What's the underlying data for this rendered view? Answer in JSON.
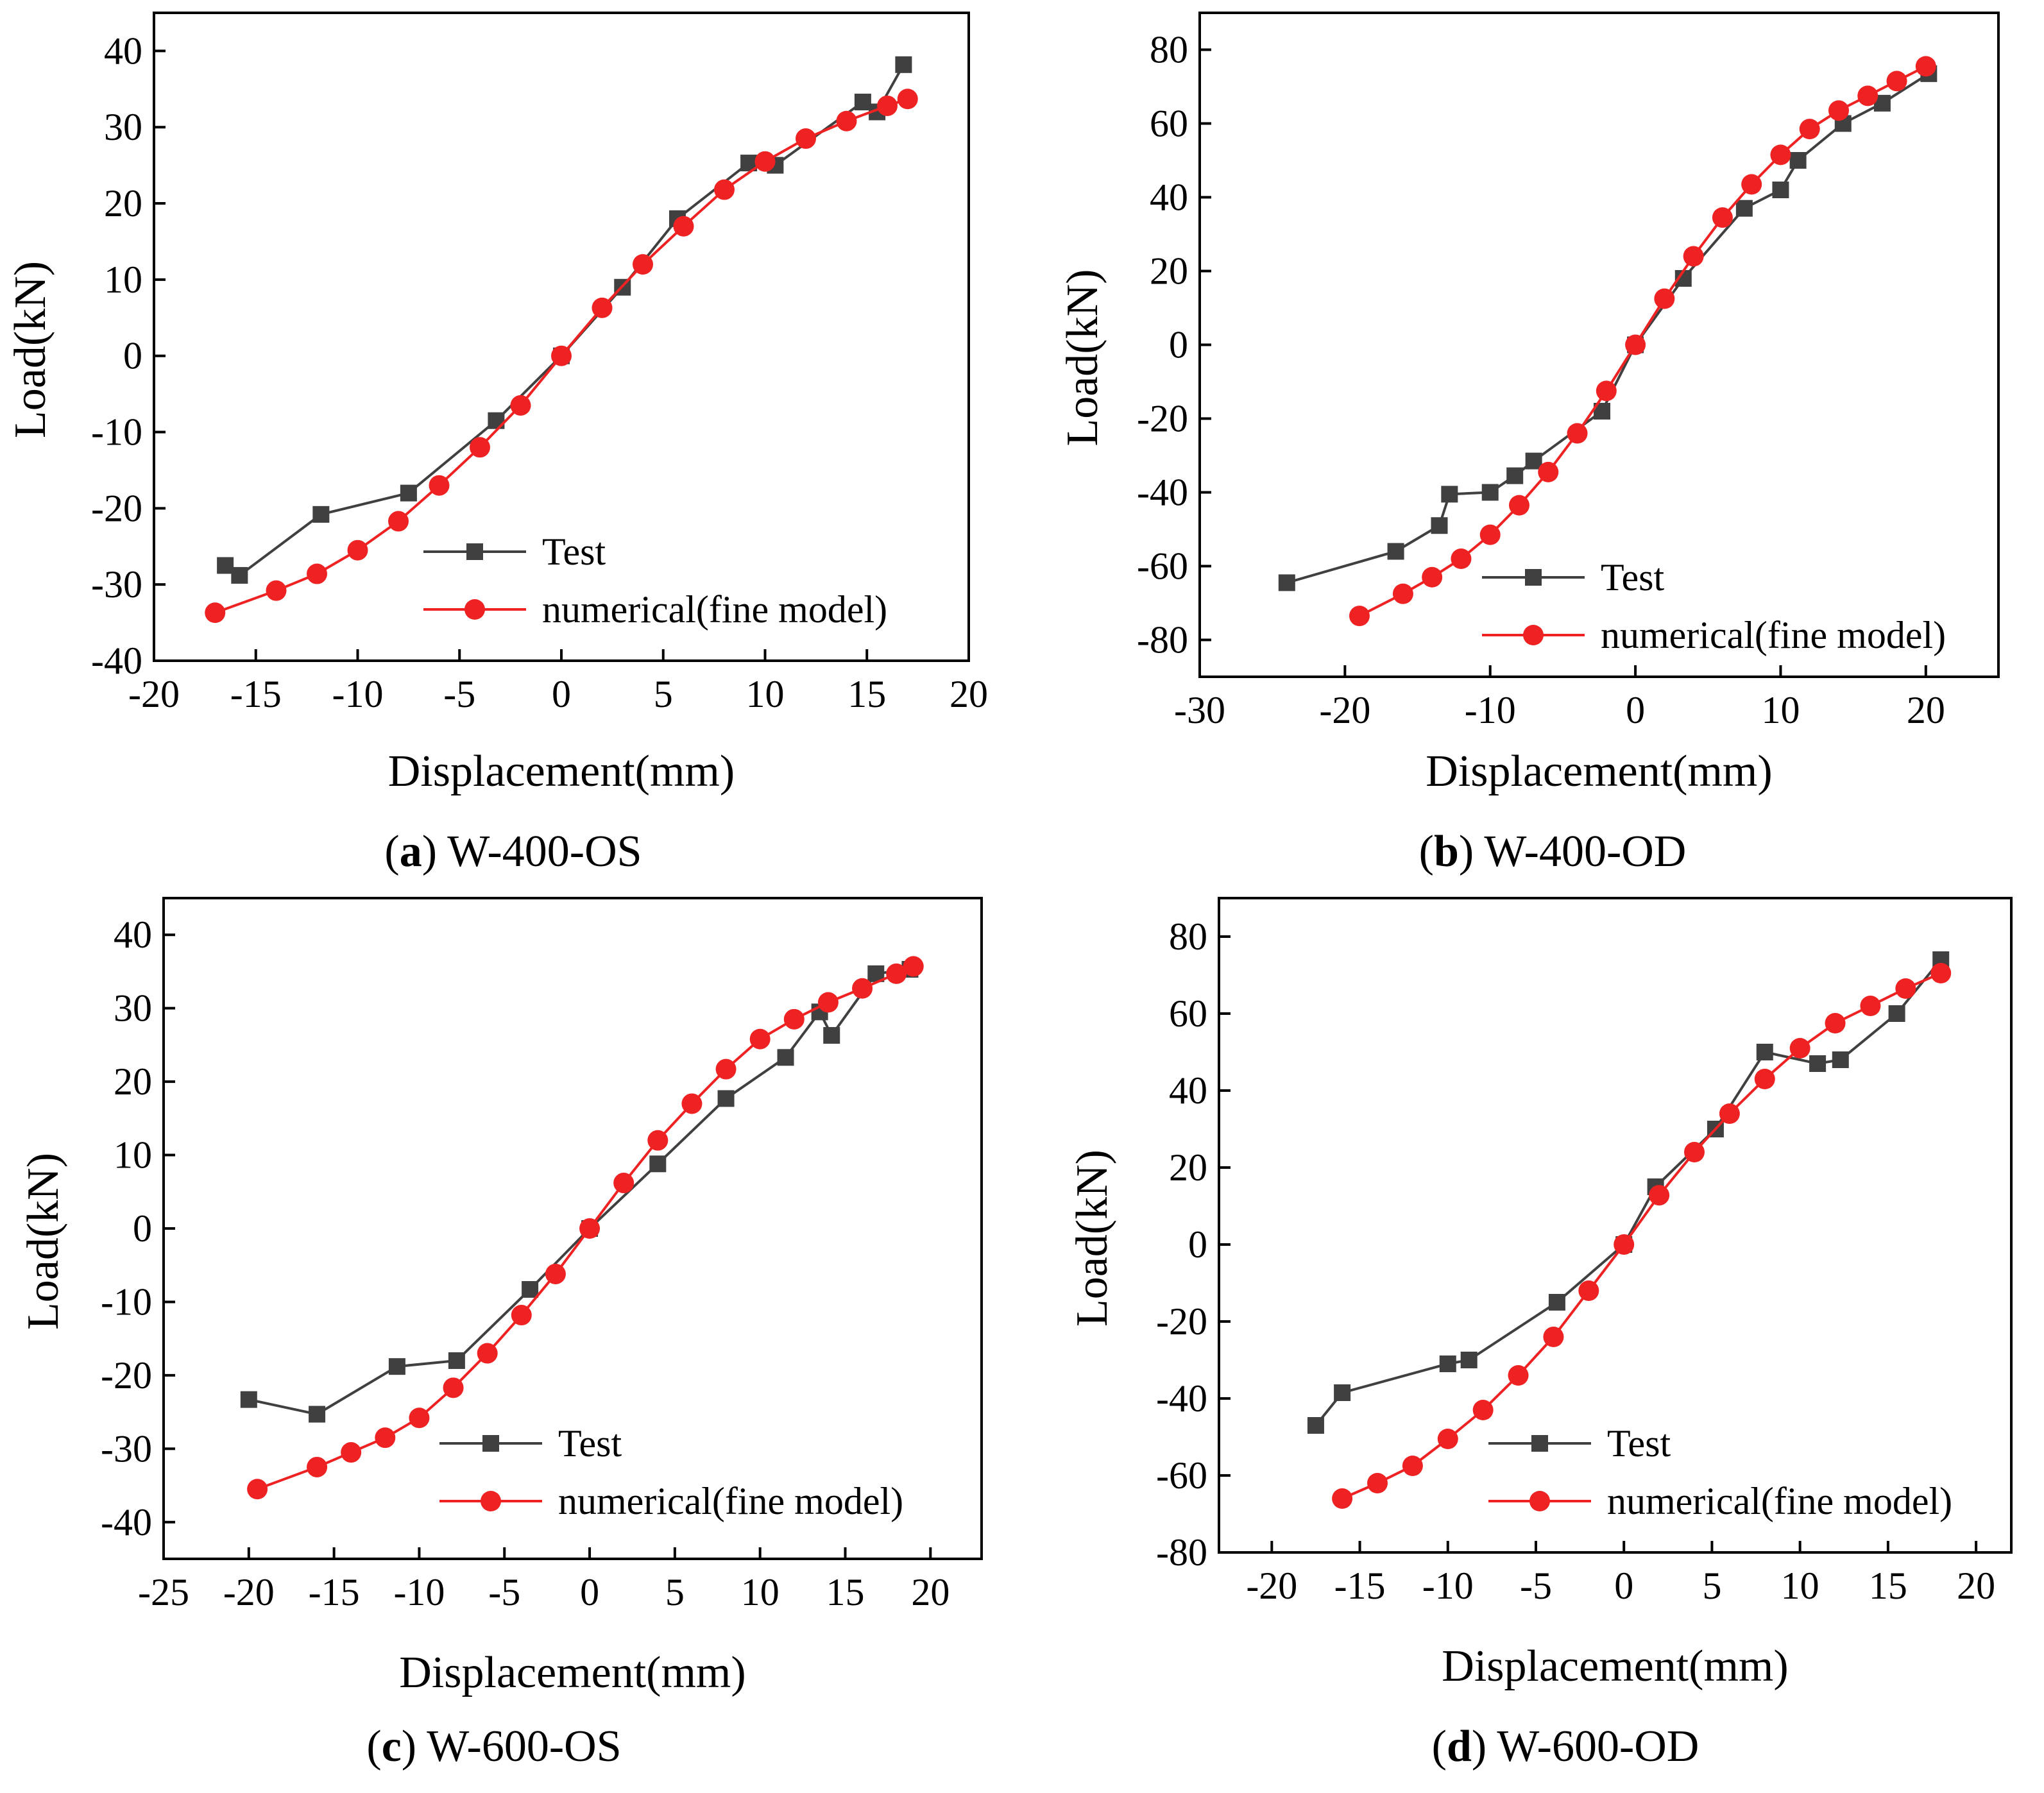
{
  "colors": {
    "test": "#404040",
    "numerical": "#ee2222",
    "axis": "#000000"
  },
  "chart_data": [
    {
      "type": "line",
      "caption_letter": "a",
      "caption_text": " W-400-OS",
      "xlabel": "Displacement(mm)",
      "ylabel": "Load(kN)",
      "xlim": [
        -20,
        20
      ],
      "ylim": [
        -40,
        45
      ],
      "xticks": [
        -20,
        -15,
        -10,
        -5,
        0,
        5,
        10,
        15,
        20
      ],
      "yticks": [
        -40,
        -30,
        -20,
        -10,
        0,
        10,
        20,
        30,
        40
      ],
      "legend_position": "bottom-right",
      "series": [
        {
          "name": "Test",
          "marker": "square",
          "x": [
            -16.5,
            -15.8,
            -11.8,
            -7.5,
            -3.2,
            0,
            3,
            5.7,
            9.2,
            10.5,
            14.8,
            15.5,
            16.8
          ],
          "y": [
            -27.5,
            -28.8,
            -20.8,
            -18,
            -8.5,
            0,
            9,
            18,
            25.3,
            25,
            33.3,
            32,
            38.2
          ]
        },
        {
          "name": "numerical(fine model)",
          "marker": "circle",
          "x": [
            -17,
            -14,
            -12,
            -10,
            -8,
            -6,
            -4,
            -2,
            0,
            2,
            4,
            6,
            8,
            10,
            12,
            14,
            16,
            17
          ],
          "y": [
            -33.7,
            -30.8,
            -28.6,
            -25.5,
            -21.7,
            -17,
            -12,
            -6.5,
            0,
            6.3,
            12,
            17,
            21.8,
            25.5,
            28.5,
            30.8,
            32.8,
            33.7
          ]
        }
      ]
    },
    {
      "type": "line",
      "caption_letter": "b",
      "caption_text": " W-400-OD",
      "xlabel": "Displacement(mm)",
      "ylabel": "Load(kN)",
      "xlim": [
        -30,
        25
      ],
      "ylim": [
        -90,
        90
      ],
      "xticks": [
        -30,
        -20,
        -10,
        0,
        10,
        20
      ],
      "yticks": [
        -80,
        -60,
        -40,
        -20,
        0,
        20,
        40,
        60,
        80
      ],
      "legend_position": "bottom-right",
      "series": [
        {
          "name": "Test",
          "marker": "square",
          "x": [
            -24,
            -16.5,
            -13.5,
            -12.8,
            -10,
            -8.3,
            -7,
            -2.3,
            0,
            3.3,
            7.5,
            10,
            11.2,
            14.3,
            17,
            20.2
          ],
          "y": [
            -64.5,
            -56,
            -49,
            -40.5,
            -40,
            -35.5,
            -31.5,
            -18,
            0,
            18,
            37,
            42,
            50,
            60,
            65.5,
            73.5
          ]
        },
        {
          "name": "numerical(fine model)",
          "marker": "circle",
          "x": [
            -19,
            -16,
            -14,
            -12,
            -10,
            -8,
            -6,
            -4,
            -2,
            0,
            2,
            4,
            6,
            8,
            10,
            12,
            14,
            16,
            18,
            20
          ],
          "y": [
            -73.5,
            -67.5,
            -63,
            -58,
            -51.5,
            -43.5,
            -34.5,
            -24,
            -12.5,
            0,
            12.5,
            24,
            34.5,
            43.5,
            51.5,
            58.5,
            63.5,
            67.5,
            71.5,
            75.5
          ]
        }
      ]
    },
    {
      "type": "line",
      "caption_letter": "c",
      "caption_text": " W-600-OS",
      "xlabel": "Displacement(mm)",
      "ylabel": "Load(kN)",
      "xlim": [
        -25,
        23
      ],
      "ylim": [
        -45,
        45
      ],
      "xticks": [
        -25,
        -20,
        -15,
        -10,
        -5,
        0,
        5,
        10,
        15,
        20
      ],
      "yticks": [
        -40,
        -30,
        -20,
        -10,
        0,
        10,
        20,
        30,
        40
      ],
      "legend_position": "bottom-right",
      "series": [
        {
          "name": "Test",
          "marker": "square",
          "x": [
            -20,
            -16,
            -11.3,
            -7.8,
            -3.5,
            0,
            4,
            8,
            11.5,
            13.5,
            14.2,
            16.8,
            18.8
          ],
          "y": [
            -23.3,
            -25.3,
            -18.8,
            -18,
            -8.3,
            0,
            8.8,
            17.7,
            23.3,
            29.5,
            26.3,
            34.7,
            35.3
          ]
        },
        {
          "name": "numerical(fine model)",
          "marker": "circle",
          "x": [
            -19.5,
            -16,
            -14,
            -12,
            -10,
            -8,
            -6,
            -4,
            -2,
            0,
            2,
            4,
            6,
            8,
            10,
            12,
            14,
            16,
            18,
            19
          ],
          "y": [
            -35.5,
            -32.5,
            -30.5,
            -28.5,
            -25.8,
            -21.7,
            -17,
            -11.8,
            -6.2,
            0,
            6.2,
            12,
            17,
            21.7,
            25.8,
            28.5,
            30.8,
            32.7,
            34.7,
            35.7
          ]
        }
      ]
    },
    {
      "type": "line",
      "caption_letter": "d",
      "caption_text": " W-600-OD",
      "xlabel": "Displacement(mm)",
      "ylabel": "Load(kN)",
      "xlim": [
        -23,
        22
      ],
      "ylim": [
        -80,
        90
      ],
      "xticks": [
        -20,
        -15,
        -10,
        -5,
        0,
        5,
        10,
        15,
        20
      ],
      "yticks": [
        -80,
        -60,
        -40,
        -20,
        0,
        20,
        40,
        60,
        80
      ],
      "legend_position": "bottom-right",
      "series": [
        {
          "name": "Test",
          "marker": "square",
          "x": [
            -17.5,
            -16,
            -10,
            -8.8,
            -3.8,
            0,
            1.8,
            5.2,
            8,
            11,
            12.3,
            15.5,
            18
          ],
          "y": [
            -47,
            -38.5,
            -31,
            -30,
            -15,
            0,
            15,
            30,
            50,
            47,
            48,
            60,
            74
          ]
        },
        {
          "name": "numerical(fine model)",
          "marker": "circle",
          "x": [
            -16,
            -14,
            -12,
            -10,
            -8,
            -6,
            -4,
            -2,
            0,
            2,
            4,
            6,
            8,
            10,
            12,
            14,
            16,
            18
          ],
          "y": [
            -66,
            -62,
            -57.5,
            -50.5,
            -43,
            -34,
            -24,
            -12,
            0,
            12.8,
            24,
            34,
            43,
            51,
            57.5,
            62,
            66.5,
            70.5
          ]
        }
      ]
    }
  ]
}
